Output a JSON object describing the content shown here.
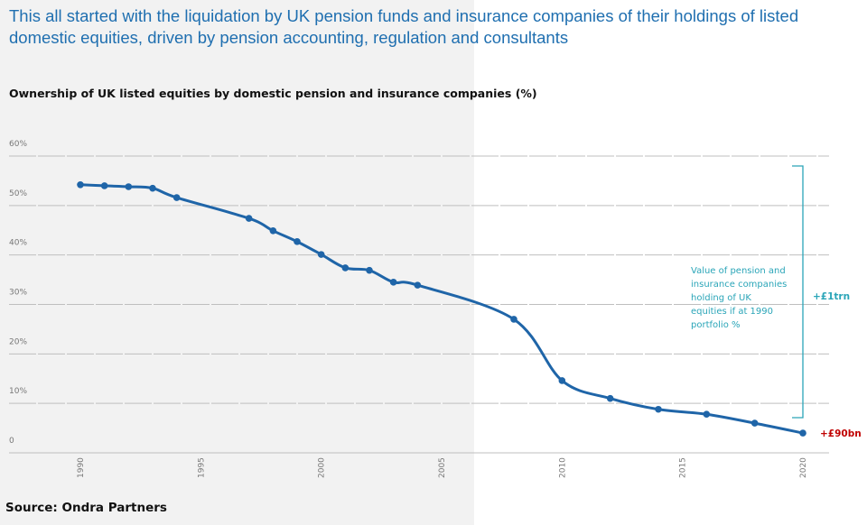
{
  "title": "This all started with the liquidation by UK pension funds and insurance companies of their holdings of listed domestic equities, driven by pension accounting, regulation and consultants",
  "source": "Source: Ondra Partners",
  "colors": {
    "line": "#1f65a8",
    "annotation": "#2aa5b8",
    "highlight": "#c00000",
    "grid": "#bfbfbf",
    "shaded_panel": "#f2f2f2"
  },
  "chart_data": {
    "type": "line",
    "title": "Ownership of UK listed equities by domestic pension and insurance companies (%)",
    "xlabel": "",
    "ylabel": "",
    "xlim": [
      1990,
      2020
    ],
    "ylim": [
      0,
      60
    ],
    "y_ticks": [
      "0",
      "10%",
      "20%",
      "30%",
      "40%",
      "50%",
      "60%"
    ],
    "x_ticks": [
      "1990",
      "1995",
      "2000",
      "2005",
      "2010",
      "2015",
      "2020"
    ],
    "grid": true,
    "x": [
      1990,
      1991,
      1992,
      1993,
      1994,
      1997,
      1998,
      1999,
      2000,
      2001,
      2002,
      2003,
      2004,
      2008,
      2010,
      2012,
      2014,
      2016,
      2018,
      2020
    ],
    "values": [
      54.2,
      54.0,
      53.8,
      53.5,
      51.6,
      47.4,
      44.9,
      42.7,
      40.1,
      37.4,
      36.9,
      34.5,
      33.9,
      27.0,
      14.6,
      11.0,
      8.8,
      7.8,
      6.0,
      4.0
    ],
    "annotations": {
      "bracket_text": "Value of pension and insurance companies holding of UK equities if at 1990 portfolio %",
      "bracket_value": "+£1trn",
      "end_value": "+£90bn"
    }
  }
}
